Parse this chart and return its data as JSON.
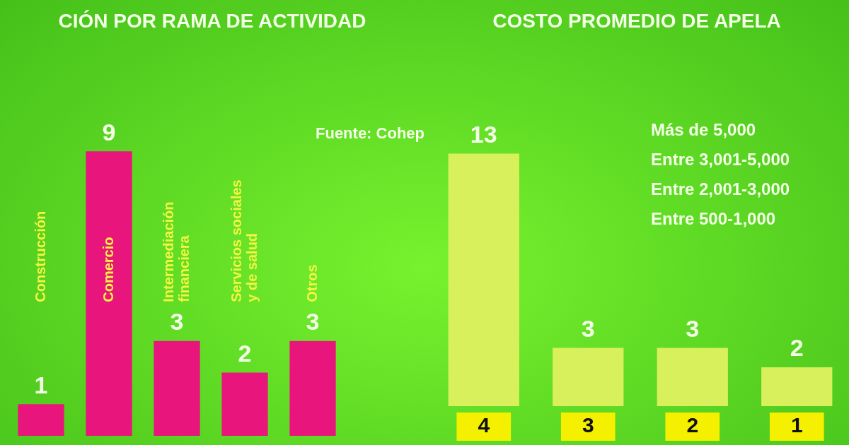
{
  "chart_data": [
    {
      "type": "bar",
      "title": "CIÓN POR RAMA DE ACTIVIDAD",
      "categories": [
        "Construcción",
        "Comercio",
        "Intermediación financiera",
        "Servicios sociales y de salud",
        "Otros"
      ],
      "values": [
        1,
        9,
        3,
        2,
        3
      ],
      "color": "#e8157c",
      "data_labels": true,
      "annotations": [
        "Fuente: Cohep"
      ]
    },
    {
      "type": "bar",
      "title": "COSTO PROMEDIO DE APELA",
      "categories": [
        "4",
        "3",
        "2",
        "1"
      ],
      "values": [
        13,
        3,
        3,
        2
      ],
      "color": "#d8f05c",
      "data_labels": true,
      "annotations": [
        "Más de 5,000",
        "Entre 3,001-5,000",
        "Entre 2,001-3,000",
        "Entre 500-1,000"
      ]
    }
  ]
}
